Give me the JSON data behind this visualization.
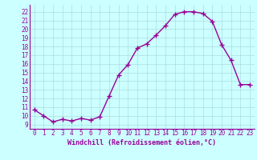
{
  "x": [
    0,
    1,
    2,
    3,
    4,
    5,
    6,
    7,
    8,
    9,
    10,
    11,
    12,
    13,
    14,
    15,
    16,
    17,
    18,
    19,
    20,
    21,
    22,
    23
  ],
  "y": [
    10.7,
    10.0,
    9.3,
    9.6,
    9.4,
    9.7,
    9.5,
    9.9,
    12.3,
    14.7,
    15.9,
    17.8,
    18.3,
    19.3,
    20.4,
    21.7,
    22.0,
    22.0,
    21.8,
    20.9,
    18.2,
    16.4,
    13.6,
    13.6
  ],
  "line_color": "#990099",
  "marker": "+",
  "markersize": 4,
  "linewidth": 1.0,
  "bg_color": "#ccffff",
  "grid_color": "#aadddd",
  "xlabel": "Windchill (Refroidissement éolien,°C)",
  "xlabel_color": "#990099",
  "xlim": [
    -0.5,
    23.5
  ],
  "ylim": [
    8.5,
    22.8
  ],
  "yticks": [
    9,
    10,
    11,
    12,
    13,
    14,
    15,
    16,
    17,
    18,
    19,
    20,
    21,
    22
  ],
  "xticks": [
    0,
    1,
    2,
    3,
    4,
    5,
    6,
    7,
    8,
    9,
    10,
    11,
    12,
    13,
    14,
    15,
    16,
    17,
    18,
    19,
    20,
    21,
    22,
    23
  ],
  "tick_fontsize": 5.5,
  "xlabel_fontsize": 6.0
}
